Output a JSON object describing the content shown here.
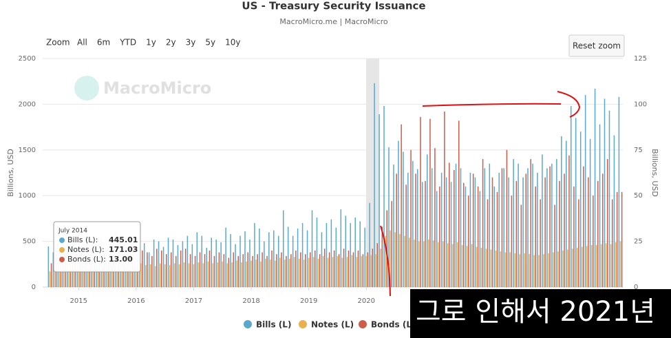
{
  "chart_data": {
    "type": "bar",
    "title": "US - Treasury Security Issuance",
    "subtitle": "MacroMicro.me | MacroMicro",
    "y_label": "Billions, USD",
    "y2_label": "Billions, USD",
    "x": [
      "2014-07",
      "2014-08",
      "2014-09",
      "2014-10",
      "2014-11",
      "2014-12",
      "2015-01",
      "2015-02",
      "2015-03",
      "2015-04",
      "2015-05",
      "2015-06",
      "2015-07",
      "2015-08",
      "2015-09",
      "2015-10",
      "2015-11",
      "2015-12",
      "2016-01",
      "2016-02",
      "2016-03",
      "2016-04",
      "2016-05",
      "2016-06",
      "2016-07",
      "2016-08",
      "2016-09",
      "2016-10",
      "2016-11",
      "2016-12",
      "2017-01",
      "2017-02",
      "2017-03",
      "2017-04",
      "2017-05",
      "2017-06",
      "2017-07",
      "2017-08",
      "2017-09",
      "2017-10",
      "2017-11",
      "2017-12",
      "2018-01",
      "2018-02",
      "2018-03",
      "2018-04",
      "2018-05",
      "2018-06",
      "2018-07",
      "2018-08",
      "2018-09",
      "2018-10",
      "2018-11",
      "2018-12",
      "2019-01",
      "2019-02",
      "2019-03",
      "2019-04",
      "2019-05",
      "2019-06",
      "2019-07",
      "2019-08",
      "2019-09",
      "2019-10",
      "2019-11",
      "2019-12",
      "2020-01",
      "2020-02",
      "2020-03",
      "2020-04",
      "2020-05",
      "2020-06",
      "2020-07",
      "2020-08",
      "2020-09",
      "2020-10",
      "2020-11",
      "2020-12",
      "2021-01",
      "2021-02",
      "2021-03",
      "2021-04",
      "2021-05",
      "2021-06",
      "2021-07",
      "2021-08",
      "2021-09",
      "2021-10",
      "2021-11",
      "2021-12",
      "2022-01",
      "2022-02",
      "2022-03",
      "2022-04",
      "2022-05",
      "2022-06",
      "2022-07",
      "2022-08",
      "2022-09",
      "2022-10",
      "2022-11",
      "2022-12",
      "2023-01",
      "2023-02",
      "2023-03",
      "2023-04",
      "2023-05",
      "2023-06",
      "2023-07",
      "2023-08",
      "2023-09",
      "2023-10",
      "2023-11",
      "2023-12",
      "2024-01",
      "2024-02",
      "2024-03",
      "2024-04",
      "2024-05",
      "2024-06"
    ],
    "xlim": [
      "2014-06",
      "2024-07"
    ],
    "xticks": [
      {
        "value": "2015-01",
        "label": "2015"
      },
      {
        "value": "2016-01",
        "label": "2016"
      },
      {
        "value": "2017-01",
        "label": "2017"
      },
      {
        "value": "2018-01",
        "label": "2018"
      },
      {
        "value": "2019-01",
        "label": "2019"
      },
      {
        "value": "2020-01",
        "label": "2020"
      }
    ],
    "ylim": [
      0,
      2500
    ],
    "yticks": [
      0,
      500,
      1000,
      1500,
      2000,
      2500
    ],
    "y2lim": [
      0,
      125
    ],
    "y2ticks": [
      0,
      25,
      50,
      75,
      100,
      125
    ],
    "grid": true,
    "series": [
      {
        "name": "Bills (L)",
        "color": "#5aa9cc",
        "values": [
          445,
          380,
          520,
          400,
          470,
          560,
          430,
          500,
          620,
          380,
          470,
          540,
          420,
          500,
          610,
          400,
          480,
          530,
          450,
          560,
          480,
          380,
          520,
          500,
          440,
          540,
          520,
          460,
          500,
          560,
          470,
          600,
          560,
          430,
          540,
          520,
          490,
          650,
          580,
          470,
          560,
          610,
          520,
          700,
          640,
          500,
          600,
          620,
          560,
          840,
          660,
          560,
          640,
          700,
          620,
          840,
          760,
          600,
          700,
          740,
          650,
          850,
          780,
          700,
          760,
          720,
          650,
          920,
          2230,
          1890,
          1980,
          1530,
          1340,
          1600,
          1480,
          1250,
          1380,
          1290,
          1150,
          1450,
          1300,
          1050,
          1250,
          1200,
          1150,
          1350,
          1300,
          1100,
          1250,
          1200,
          1050,
          1300,
          1350,
          1100,
          1250,
          1300,
          1200,
          1400,
          1350,
          1200,
          1300,
          1350,
          1250,
          1450,
          1300,
          1350,
          1400,
          1650,
          1600,
          1980,
          1850,
          1700,
          2100,
          1620,
          2170,
          1780,
          2060,
          1930,
          1660,
          2080
        ]
      },
      {
        "name": "Notes (L)",
        "color": "#e8b14e",
        "values": [
          171,
          200,
          180,
          220,
          190,
          210,
          210,
          240,
          200,
          230,
          210,
          220,
          240,
          230,
          200,
          250,
          220,
          230,
          230,
          260,
          240,
          250,
          230,
          260,
          250,
          240,
          260,
          250,
          270,
          260,
          250,
          270,
          260,
          280,
          260,
          270,
          280,
          260,
          270,
          290,
          270,
          280,
          290,
          300,
          280,
          310,
          300,
          290,
          320,
          300,
          310,
          330,
          310,
          300,
          320,
          330,
          310,
          340,
          320,
          330,
          340,
          320,
          330,
          350,
          330,
          340,
          340,
          350,
          360,
          420,
          560,
          620,
          600,
          580,
          560,
          540,
          520,
          500,
          500,
          520,
          510,
          490,
          500,
          480,
          470,
          490,
          460,
          450,
          470,
          440,
          430,
          420,
          410,
          400,
          390,
          380,
          380,
          370,
          360,
          370,
          360,
          350,
          350,
          360,
          370,
          380,
          390,
          400,
          410,
          420,
          430,
          440,
          450,
          460,
          460,
          470,
          480,
          470,
          490,
          500
        ]
      },
      {
        "name": "Bonds (L)",
        "color": "#cd5c4b",
        "axis": "y2",
        "values": [
          13,
          18,
          20,
          17,
          19,
          21,
          20,
          18,
          21,
          17,
          19,
          20,
          18,
          21,
          19,
          17,
          20,
          22,
          18,
          20,
          19,
          17,
          21,
          20,
          18,
          19,
          17,
          20,
          21,
          18,
          17,
          19,
          18,
          20,
          17,
          19,
          18,
          16,
          19,
          17,
          18,
          19,
          17,
          18,
          19,
          17,
          20,
          18,
          19,
          17,
          18,
          20,
          19,
          18,
          19,
          20,
          18,
          21,
          19,
          20,
          18,
          21,
          20,
          19,
          20,
          18,
          19,
          21,
          24,
          33,
          42,
          47,
          62,
          89,
          56,
          75,
          62,
          93,
          58,
          92,
          76,
          55,
          96,
          68,
          64,
          91,
          57,
          50,
          62,
          55,
          70,
          48,
          60,
          52,
          65,
          75,
          50,
          58,
          45,
          62,
          70,
          55,
          48,
          60,
          66,
          45,
          58,
          62,
          72,
          55,
          48,
          66,
          60,
          50,
          58,
          62,
          70,
          48,
          52,
          52
        ]
      }
    ],
    "tooltip": {
      "title": "July 2014",
      "rows": [
        {
          "label": "Bills (L):",
          "value": "445.01"
        },
        {
          "label": "Notes (L):",
          "value": "171.03"
        },
        {
          "label": "Bonds (L):",
          "value": "13.00"
        }
      ]
    }
  },
  "ui": {
    "zoom_label": "Zoom",
    "zoom_buttons": [
      "All",
      "6m",
      "YTD",
      "1y",
      "2y",
      "3y",
      "5y",
      "10y"
    ],
    "reset_zoom": "Reset zoom",
    "watermark": "MacroMicro",
    "caption": "그로 인해서 2021년"
  }
}
